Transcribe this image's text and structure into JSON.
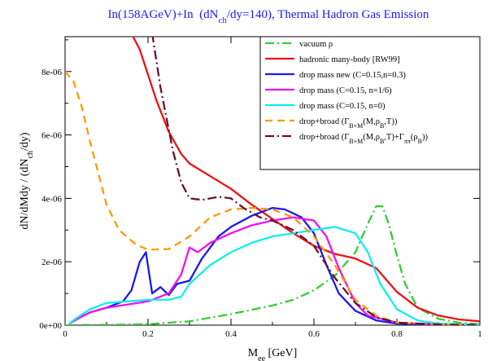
{
  "chart_data": {
    "type": "line",
    "title": "In(158AGeV)+In (dN_ch/dy=140), Thermal Hadron Gas Emission",
    "title_color": "#1a1aff",
    "xlabel": "M_ee [GeV]",
    "ylabel": "dN/dMdy / (dN_ch/dy)",
    "xlim": [
      0,
      1
    ],
    "ylim": [
      0,
      9.1e-06
    ],
    "x_ticks": [
      0,
      0.2,
      0.4,
      0.6,
      0.8,
      1
    ],
    "x_tick_labels": [
      "0",
      "0.2",
      "0.4",
      "0.6",
      "0.8",
      "1"
    ],
    "y_ticks": [
      0,
      2e-06,
      4e-06,
      6e-06,
      8e-06
    ],
    "y_tick_labels": [
      "0e+00",
      "2e-06",
      "4e-06",
      "6e-06",
      "8e-06"
    ],
    "legend_position": "top-right",
    "series": [
      {
        "name": "vacuum ρ",
        "color": "#33cc33",
        "dash": "dash-dot",
        "points": [
          [
            0,
            0
          ],
          [
            0.1,
            1e-08
          ],
          [
            0.2,
            3e-08
          ],
          [
            0.3,
            1.2e-07
          ],
          [
            0.4,
            3.5e-07
          ],
          [
            0.5,
            6.2e-07
          ],
          [
            0.55,
            8e-07
          ],
          [
            0.6,
            1.1e-06
          ],
          [
            0.65,
            1.55e-06
          ],
          [
            0.7,
            2.3e-06
          ],
          [
            0.73,
            3.2e-06
          ],
          [
            0.75,
            3.75e-06
          ],
          [
            0.765,
            3.75e-06
          ],
          [
            0.78,
            3.2e-06
          ],
          [
            0.8,
            2.2e-06
          ],
          [
            0.82,
            1.3e-06
          ],
          [
            0.85,
            5.5e-07
          ],
          [
            0.9,
            2e-07
          ],
          [
            0.95,
            8e-08
          ],
          [
            1,
            3e-08
          ]
        ]
      },
      {
        "name": "hadronic many-body [RW99]",
        "color": "#ee1111",
        "dash": "solid",
        "points": [
          [
            0.16,
            9.2e-06
          ],
          [
            0.18,
            8.7e-06
          ],
          [
            0.2,
            7.9e-06
          ],
          [
            0.22,
            7.1e-06
          ],
          [
            0.25,
            6.1e-06
          ],
          [
            0.28,
            5.4e-06
          ],
          [
            0.3,
            5.1e-06
          ],
          [
            0.35,
            4.7e-06
          ],
          [
            0.4,
            4.3e-06
          ],
          [
            0.45,
            3.8e-06
          ],
          [
            0.5,
            3.35e-06
          ],
          [
            0.55,
            2.9e-06
          ],
          [
            0.6,
            2.5e-06
          ],
          [
            0.65,
            2.25e-06
          ],
          [
            0.7,
            2.1e-06
          ],
          [
            0.75,
            1.8e-06
          ],
          [
            0.8,
            1.05e-06
          ],
          [
            0.85,
            5.5e-07
          ],
          [
            0.9,
            3e-07
          ],
          [
            0.95,
            1.8e-07
          ],
          [
            1,
            1.2e-07
          ]
        ]
      },
      {
        "name": "drop mass new (C=0.15,n=0.3)",
        "color": "#1a1aee",
        "dash": "solid",
        "points": [
          [
            0.01,
            5e-08
          ],
          [
            0.03,
            2e-07
          ],
          [
            0.06,
            4e-07
          ],
          [
            0.1,
            5.5e-07
          ],
          [
            0.14,
            7.5e-07
          ],
          [
            0.16,
            1.1e-06
          ],
          [
            0.18,
            2e-06
          ],
          [
            0.195,
            2.3e-06
          ],
          [
            0.21,
            1e-06
          ],
          [
            0.23,
            1.2e-06
          ],
          [
            0.25,
            9.5e-07
          ],
          [
            0.27,
            1.3e-06
          ],
          [
            0.3,
            1.4e-06
          ],
          [
            0.33,
            2.1e-06
          ],
          [
            0.37,
            2.8e-06
          ],
          [
            0.4,
            3.1e-06
          ],
          [
            0.45,
            3.45e-06
          ],
          [
            0.5,
            3.7e-06
          ],
          [
            0.53,
            3.65e-06
          ],
          [
            0.57,
            3.4e-06
          ],
          [
            0.6,
            2.9e-06
          ],
          [
            0.63,
            1.9e-06
          ],
          [
            0.66,
            1e-06
          ],
          [
            0.7,
            4.5e-07
          ],
          [
            0.75,
            1.5e-07
          ],
          [
            0.8,
            5e-08
          ],
          [
            0.9,
            1e-08
          ],
          [
            1,
            5e-09
          ]
        ]
      },
      {
        "name": "drop mass (C=0.15, n=1/6)",
        "color": "#ee11ee",
        "dash": "solid",
        "points": [
          [
            0.01,
            5e-08
          ],
          [
            0.03,
            2e-07
          ],
          [
            0.06,
            4e-07
          ],
          [
            0.1,
            5.5e-07
          ],
          [
            0.15,
            6.5e-07
          ],
          [
            0.2,
            7.5e-07
          ],
          [
            0.25,
            1e-06
          ],
          [
            0.28,
            1.6e-06
          ],
          [
            0.3,
            2.45e-06
          ],
          [
            0.32,
            2.3e-06
          ],
          [
            0.35,
            2.6e-06
          ],
          [
            0.4,
            2.9e-06
          ],
          [
            0.45,
            3.15e-06
          ],
          [
            0.5,
            3.3e-06
          ],
          [
            0.55,
            3.4e-06
          ],
          [
            0.6,
            3.3e-06
          ],
          [
            0.63,
            2.8e-06
          ],
          [
            0.66,
            1.8e-06
          ],
          [
            0.7,
            7e-07
          ],
          [
            0.73,
            3e-07
          ],
          [
            0.8,
            8e-08
          ],
          [
            0.9,
            2e-08
          ],
          [
            1,
            5e-09
          ]
        ]
      },
      {
        "name": "drop mass (C=0.15, n=0)",
        "color": "#11eeee",
        "dash": "solid",
        "points": [
          [
            0.01,
            5e-08
          ],
          [
            0.03,
            2.5e-07
          ],
          [
            0.06,
            5e-07
          ],
          [
            0.1,
            7e-07
          ],
          [
            0.15,
            7.5e-07
          ],
          [
            0.2,
            8e-07
          ],
          [
            0.25,
            8e-07
          ],
          [
            0.28,
            9e-07
          ],
          [
            0.3,
            1.3e-06
          ],
          [
            0.35,
            1.9e-06
          ],
          [
            0.4,
            2.3e-06
          ],
          [
            0.45,
            2.6e-06
          ],
          [
            0.5,
            2.8e-06
          ],
          [
            0.55,
            2.9e-06
          ],
          [
            0.6,
            3e-06
          ],
          [
            0.65,
            3.1e-06
          ],
          [
            0.7,
            2.9e-06
          ],
          [
            0.73,
            2.3e-06
          ],
          [
            0.76,
            1.3e-06
          ],
          [
            0.8,
            5e-07
          ],
          [
            0.85,
            1.5e-07
          ],
          [
            0.9,
            5e-08
          ],
          [
            1,
            1e-08
          ]
        ]
      },
      {
        "name": "drop+broad (Γ_B+M(M,ρ_B,T))",
        "color": "#ff9900",
        "dash": "dashed",
        "points": [
          [
            0,
            8e-06
          ],
          [
            0.02,
            7.7e-06
          ],
          [
            0.04,
            6.9e-06
          ],
          [
            0.06,
            5.8e-06
          ],
          [
            0.08,
            4.8e-06
          ],
          [
            0.1,
            3.8e-06
          ],
          [
            0.13,
            3e-06
          ],
          [
            0.17,
            2.55e-06
          ],
          [
            0.2,
            2.38e-06
          ],
          [
            0.25,
            2.4e-06
          ],
          [
            0.3,
            2.8e-06
          ],
          [
            0.35,
            3.4e-06
          ],
          [
            0.4,
            3.65e-06
          ],
          [
            0.45,
            3.7e-06
          ],
          [
            0.5,
            3.65e-06
          ],
          [
            0.55,
            3.4e-06
          ],
          [
            0.6,
            2.8e-06
          ],
          [
            0.65,
            1.9e-06
          ],
          [
            0.7,
            8e-07
          ],
          [
            0.75,
            3e-07
          ],
          [
            0.8,
            8e-08
          ],
          [
            0.9,
            2e-08
          ],
          [
            1,
            5e-09
          ]
        ]
      },
      {
        "name": "drop+broad (Γ_B+M(M,ρ_B,T)+Γ_ππ(ρ_B))",
        "color": "#661133",
        "dash": "dash-dot",
        "points": [
          [
            0.21,
            9.2e-06
          ],
          [
            0.23,
            7.5e-06
          ],
          [
            0.26,
            5.5e-06
          ],
          [
            0.28,
            4.5e-06
          ],
          [
            0.3,
            4e-06
          ],
          [
            0.33,
            3.95e-06
          ],
          [
            0.37,
            4.05e-06
          ],
          [
            0.4,
            4e-06
          ],
          [
            0.43,
            3.7e-06
          ],
          [
            0.47,
            3.4e-06
          ],
          [
            0.5,
            3.3e-06
          ],
          [
            0.55,
            3e-06
          ],
          [
            0.6,
            2.5e-06
          ],
          [
            0.65,
            1.5e-06
          ],
          [
            0.7,
            7e-07
          ],
          [
            0.75,
            2.5e-07
          ],
          [
            0.8,
            8e-08
          ],
          [
            0.9,
            2e-08
          ],
          [
            1,
            5e-09
          ]
        ]
      }
    ]
  }
}
